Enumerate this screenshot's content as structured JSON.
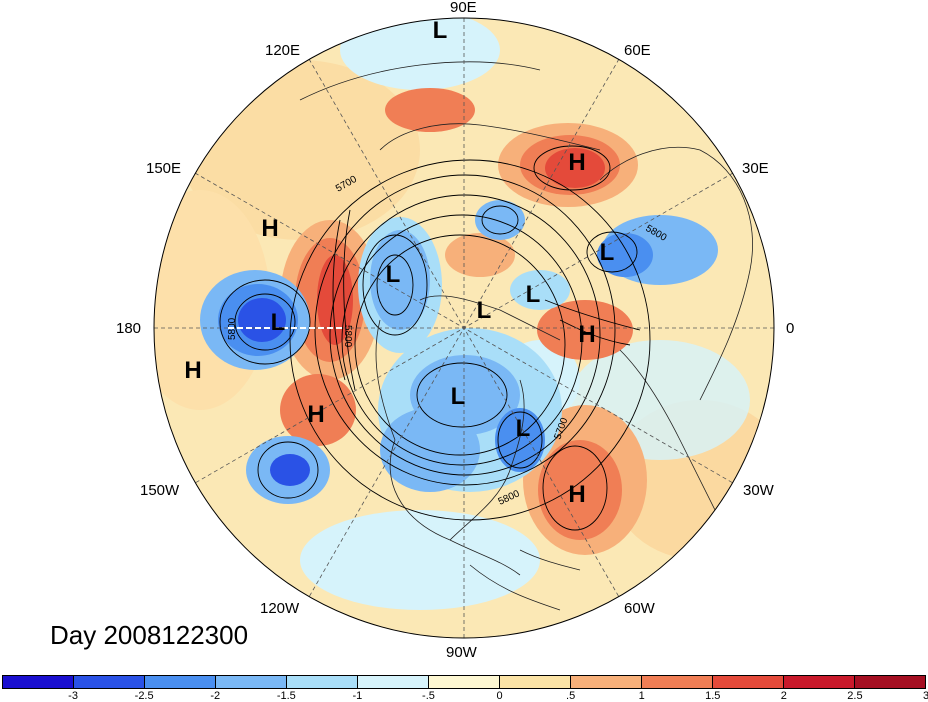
{
  "title": "Day 2008122300",
  "longitude_labels": {
    "e90": "90E",
    "e120": "120E",
    "e60": "60E",
    "e150": "150E",
    "e30": "30E",
    "w180": "180",
    "e0": "0",
    "w150": "150W",
    "w30": "30W",
    "w120": "120W",
    "w60": "60W",
    "w90": "90W"
  },
  "centers": [
    {
      "type": "L"
    },
    {
      "type": "H"
    },
    {
      "type": "H"
    },
    {
      "type": "L"
    },
    {
      "type": "L"
    },
    {
      "type": "L"
    },
    {
      "type": "L"
    },
    {
      "type": "H"
    },
    {
      "type": "L"
    },
    {
      "type": "H"
    },
    {
      "type": "H"
    },
    {
      "type": "L"
    },
    {
      "type": "L"
    },
    {
      "type": "H"
    },
    {
      "type": "H"
    }
  ],
  "contour_labels": [
    "5700",
    "5800",
    "5800",
    "5800",
    "5700",
    "5800"
  ],
  "colorbar": {
    "colors": [
      "#1a0fd0",
      "#2a52e6",
      "#4a8ff0",
      "#7ab8f5",
      "#a9def8",
      "#d6f3fb",
      "#fdf7d2",
      "#fbe3a6",
      "#f7b07a",
      "#f07e55",
      "#e44a3a",
      "#c9192b",
      "#a50f22"
    ],
    "ticks": [
      "-3",
      "-2.5",
      "-2",
      "-1.5",
      "-1",
      "-.5",
      "0",
      ".5",
      "1",
      "1.5",
      "2",
      "2.5",
      "3"
    ]
  }
}
